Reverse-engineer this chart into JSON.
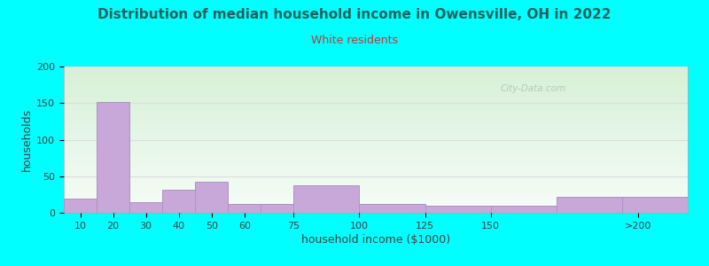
{
  "title": "Distribution of median household income in Owensville, OH in 2022",
  "subtitle": "White residents",
  "xlabel": "household income ($1000)",
  "ylabel": "households",
  "background_outer": "#00FFFF",
  "bg_gradient_top": "#d8f0d8",
  "bg_gradient_bottom": "#eef8f4",
  "bar_color": "#c8a8d8",
  "bar_edge_color": "#b090c8",
  "title_color": "#206060",
  "subtitle_color": "#cc3333",
  "axis_label_color": "#404040",
  "tick_label_color": "#404040",
  "grid_color": "#dddddd",
  "watermark": "City-Data.com",
  "bar_heights": [
    20,
    152,
    15,
    32,
    42,
    12,
    12,
    37,
    12,
    10,
    10,
    22,
    22
  ],
  "bar_lefts": [
    0,
    1,
    2,
    3,
    4,
    5,
    6,
    7,
    9,
    11,
    13,
    15,
    17
  ],
  "bar_widths": [
    1,
    1,
    1,
    1,
    1,
    1,
    1,
    2,
    2,
    2,
    2,
    2,
    2
  ],
  "xlim": [
    0,
    19
  ],
  "ylim": [
    0,
    200
  ],
  "yticks": [
    0,
    50,
    100,
    150,
    200
  ],
  "xtick_locs": [
    0.5,
    1.5,
    2.5,
    3.5,
    4.5,
    5.5,
    7.0,
    9.0,
    11.0,
    13.0,
    17.5
  ],
  "xtick_lbls": [
    "10",
    "20",
    "30",
    "40",
    "50",
    "60",
    "75",
    "100",
    "125",
    "150",
    ">200"
  ],
  "figsize": [
    8.0,
    3.0
  ],
  "dpi": 100
}
